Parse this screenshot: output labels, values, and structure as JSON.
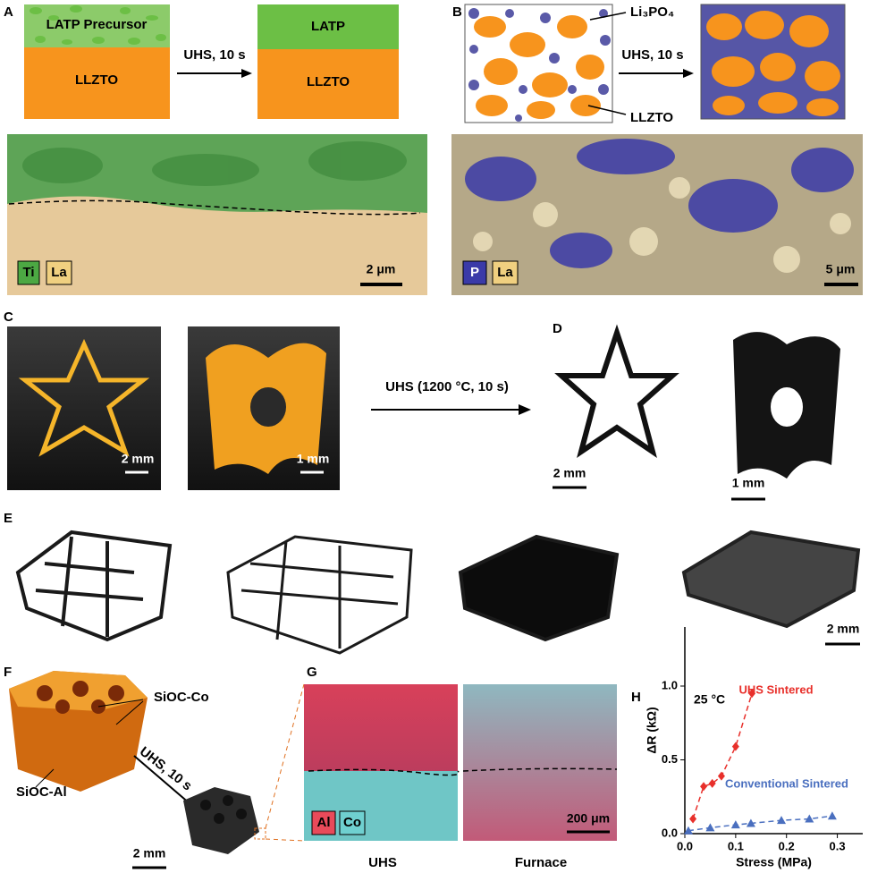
{
  "panel_labels": [
    "A",
    "B",
    "C",
    "D",
    "E",
    "F",
    "G",
    "H"
  ],
  "panel_a": {
    "precursor": "LATP Precursor",
    "substrate": "LLZTO",
    "process": "UHS, 10 s",
    "product": "LATP",
    "substrate_after": "LLZTO",
    "legend": [
      "Ti",
      "La"
    ],
    "scale_bar": "2 μm"
  },
  "panel_b": {
    "additive": "Li₃PO₄",
    "matrix": "LLZTO",
    "process": "UHS, 10 s",
    "legend": [
      "P",
      "La"
    ],
    "scale_bar": "5 μm"
  },
  "panel_c": {
    "scale_bars": [
      "2 mm",
      "1 mm"
    ],
    "process": "UHS (1200 °C, 10 s)"
  },
  "panel_d": {
    "scale_bars": [
      "2 mm",
      "1 mm"
    ]
  },
  "panel_e": {
    "scale_bar": "2 mm"
  },
  "panel_f": {
    "top_label": "SiOC-Co",
    "bottom_label": "SiOC-Al",
    "process": "UHS, 10 s",
    "scale_bar": "2 mm"
  },
  "panel_g": {
    "legend": [
      "Al",
      "Co"
    ],
    "scale_bar": "200 μm",
    "captions": [
      "UHS",
      "Furnace"
    ]
  },
  "chart_data": {
    "type": "line",
    "annotation": "25 °C",
    "xlabel": "Stress (MPa)",
    "ylabel": "ΔR (kΩ)",
    "xlim": [
      0,
      0.35
    ],
    "ylim": [
      0,
      1.4
    ],
    "xticks": [
      {
        "value": 0,
        "label": "0.0"
      },
      0.1,
      0.2,
      0.3
    ],
    "yticks": [
      {
        "value": 0,
        "label": "0.0"
      },
      0.5,
      {
        "value": 1,
        "label": "1.0"
      }
    ],
    "series": [
      {
        "name": "UHS Sintered",
        "color": "#e8302b",
        "marker": "diamond",
        "x": [
          0.016,
          0.037,
          0.054,
          0.072,
          0.1,
          0.132
        ],
        "values": [
          0.1,
          0.32,
          0.34,
          0.39,
          0.59,
          0.95
        ]
      },
      {
        "name": "Conventional Sintered",
        "color": "#4a6fbf",
        "marker": "triangle",
        "x": [
          0.007,
          0.05,
          0.1,
          0.13,
          0.19,
          0.245,
          0.29
        ],
        "values": [
          0.02,
          0.04,
          0.06,
          0.07,
          0.09,
          0.1,
          0.12
        ]
      }
    ]
  }
}
